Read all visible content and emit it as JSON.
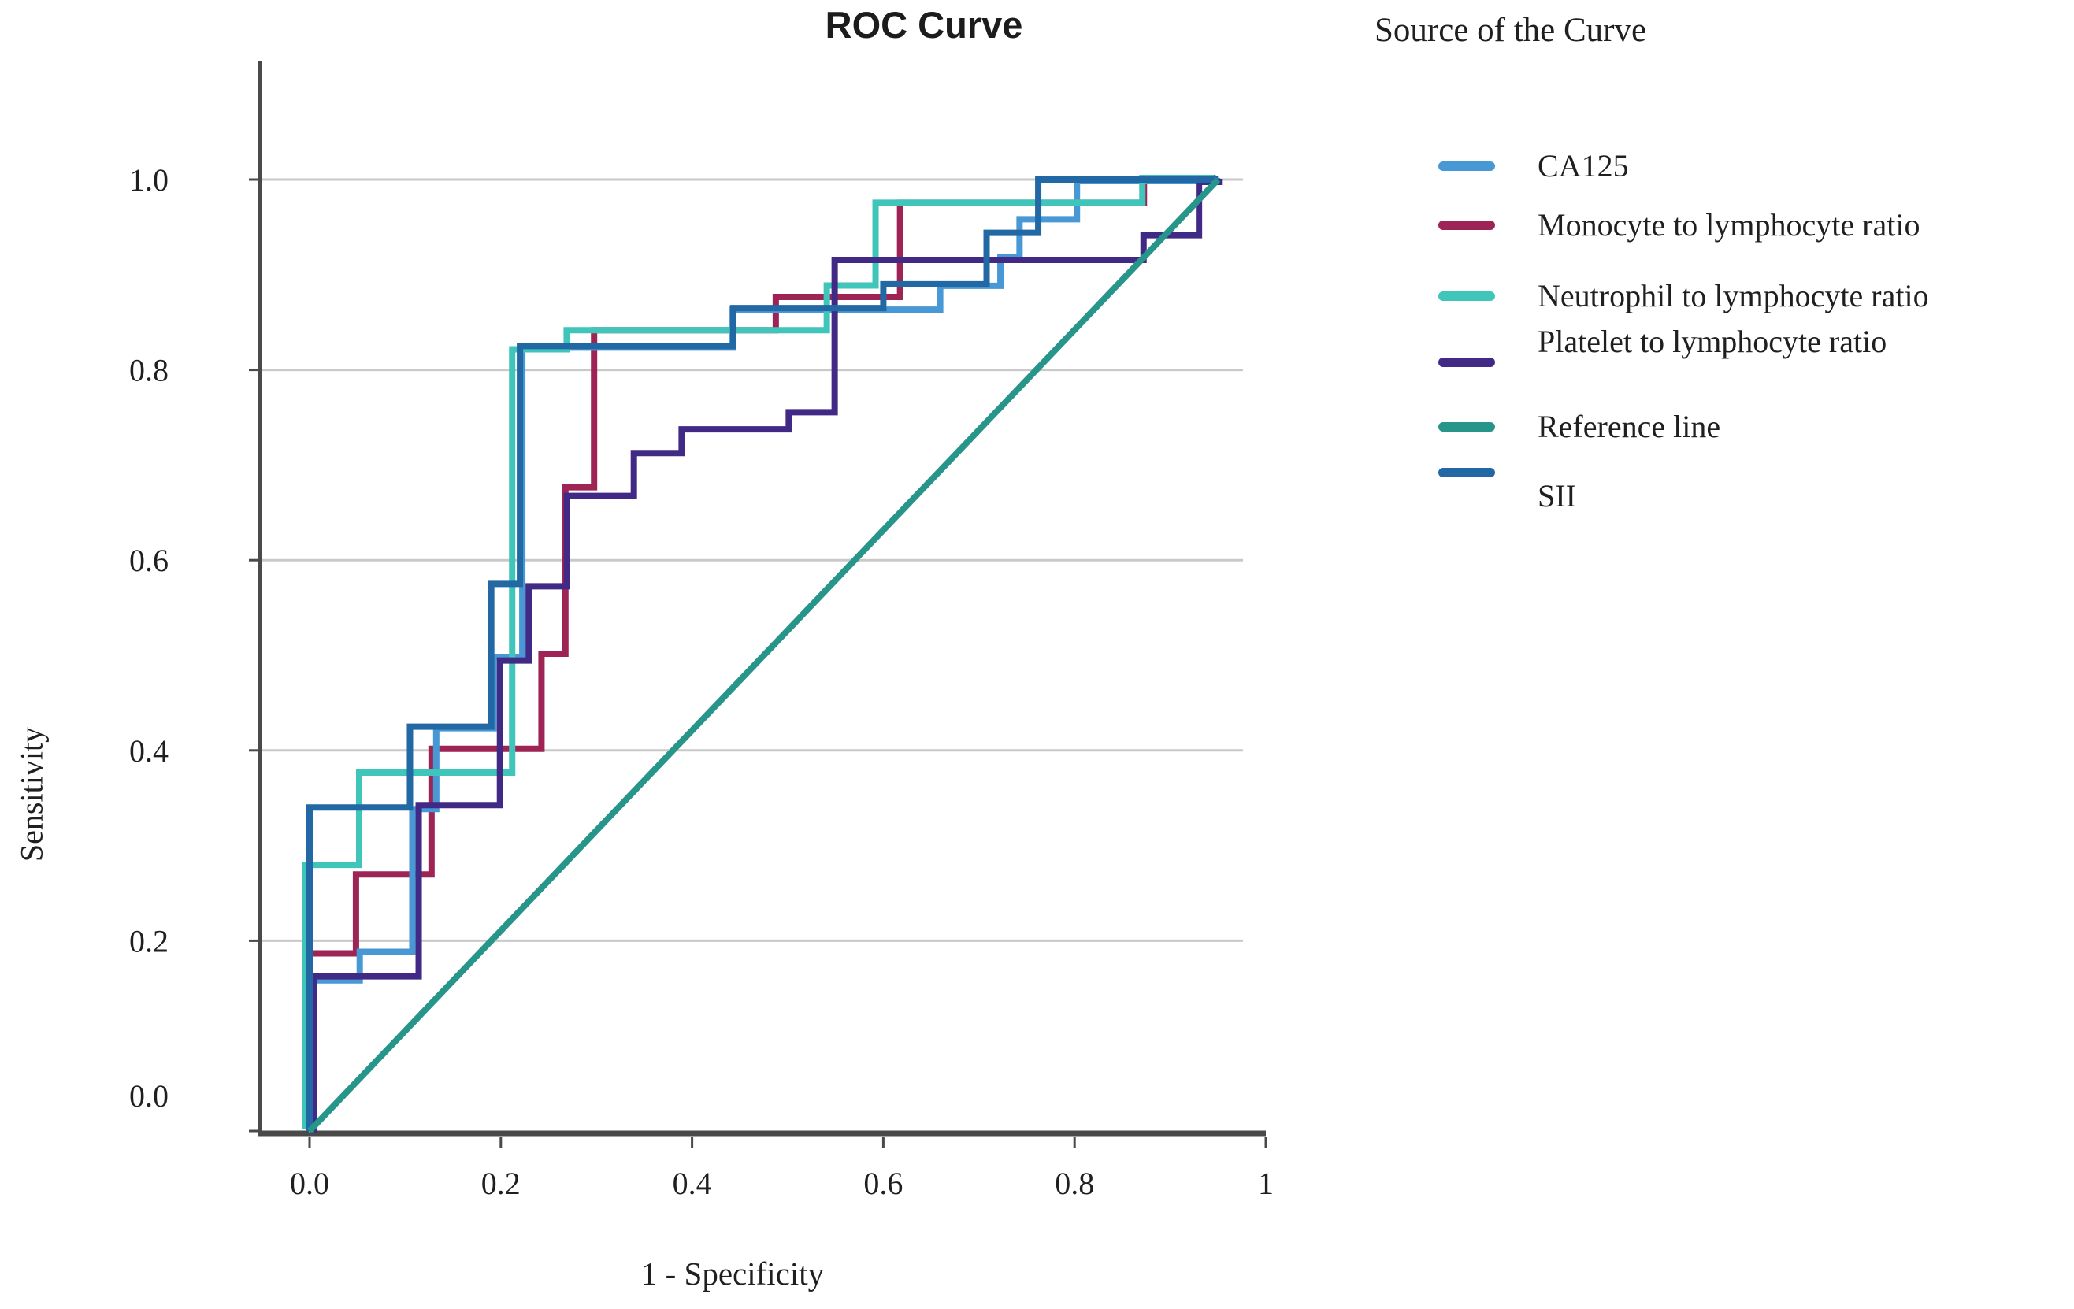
{
  "title": "ROC Curve",
  "axes": {
    "x_label": "1 - Specificity",
    "y_label": "Sensitivity",
    "x_ticks": [
      {
        "label": "0.0",
        "value": 0
      },
      {
        "label": "0.2",
        "value": 0.2
      },
      {
        "label": "0.4",
        "value": 0.4
      },
      {
        "label": "0.6",
        "value": 0.6
      },
      {
        "label": "0.8",
        "value": 0.8
      },
      {
        "label": "1",
        "value": 1
      }
    ],
    "y_ticks": [
      {
        "label": "0.0",
        "value": 0
      },
      {
        "label": "0.2",
        "value": 0.2
      },
      {
        "label": "0.4",
        "value": 0.4
      },
      {
        "label": "0.6",
        "value": 0.6
      },
      {
        "label": "0.8",
        "value": 0.8
      },
      {
        "label": "1.0",
        "value": 1
      }
    ],
    "x_range": [
      0,
      1
    ],
    "y_range": [
      0,
      1
    ]
  },
  "legend": {
    "title": "Source of the Curve",
    "items": [
      {
        "label": "CA125",
        "color": "#4898d5"
      },
      {
        "label": "Monocyte to lymphocyte ratio",
        "color": "#9e2456"
      },
      {
        "label": "Neutrophil to lymphocyte ratio",
        "color": "#3fc5ba"
      },
      {
        "label": "Platelet to lymphocyte ratio",
        "color": "#402a85"
      },
      {
        "label": "Reference line",
        "color": "#27958a"
      },
      {
        "label": "SII",
        "color": "#2268a4"
      }
    ]
  },
  "chart_data": {
    "type": "line",
    "subtype": "roc-step-curves",
    "title": "ROC Curve",
    "xlabel": "1 - Specificity",
    "ylabel": "Sensitivity",
    "xlim": [
      0,
      1
    ],
    "ylim": [
      0,
      1
    ],
    "grid": "horizontal",
    "y_gridlines": [
      0.2,
      0.4,
      0.6,
      0.8,
      1.0
    ],
    "legend_position": "right",
    "series": [
      {
        "name": "CA125",
        "color": "#4898d5",
        "points": [
          [
            0,
            0
          ],
          [
            0,
            0.16
          ],
          [
            0.05,
            0.16
          ],
          [
            0.05,
            0.19
          ],
          [
            0.105,
            0.19
          ],
          [
            0.105,
            0.34
          ],
          [
            0.13,
            0.34
          ],
          [
            0.13,
            0.425
          ],
          [
            0.19,
            0.425
          ],
          [
            0.19,
            0.5
          ],
          [
            0.22,
            0.5
          ],
          [
            0.22,
            0.825
          ],
          [
            0.44,
            0.825
          ],
          [
            0.44,
            0.865
          ],
          [
            0.657,
            0.865
          ],
          [
            0.657,
            0.89
          ],
          [
            0.72,
            0.89
          ],
          [
            0.72,
            0.92
          ],
          [
            0.74,
            0.92
          ],
          [
            0.74,
            0.96
          ],
          [
            0.8,
            0.96
          ],
          [
            0.8,
            1.0
          ],
          [
            0.95,
            1.0
          ]
        ]
      },
      {
        "name": "Monocyte to lymphocyte ratio",
        "color": "#9e2456",
        "points": [
          [
            0,
            0
          ],
          [
            0,
            0.185
          ],
          [
            0.051,
            0.185
          ],
          [
            0.051,
            0.268
          ],
          [
            0.13,
            0.268
          ],
          [
            0.13,
            0.4
          ],
          [
            0.245,
            0.4
          ],
          [
            0.245,
            0.5
          ],
          [
            0.27,
            0.5
          ],
          [
            0.27,
            0.675
          ],
          [
            0.3,
            0.675
          ],
          [
            0.3,
            0.84
          ],
          [
            0.49,
            0.84
          ],
          [
            0.49,
            0.875
          ],
          [
            0.62,
            0.875
          ],
          [
            0.62,
            0.974
          ],
          [
            0.875,
            0.974
          ],
          [
            0.875,
            1.0
          ],
          [
            0.95,
            1.0
          ]
        ]
      },
      {
        "name": "Neutrophil to lymphocyte ratio",
        "color": "#3fc5ba",
        "points": [
          [
            0,
            0
          ],
          [
            0,
            0.278
          ],
          [
            0.056,
            0.278
          ],
          [
            0.056,
            0.375
          ],
          [
            0.216,
            0.375
          ],
          [
            0.216,
            0.82
          ],
          [
            0.273,
            0.82
          ],
          [
            0.273,
            0.84
          ],
          [
            0.545,
            0.84
          ],
          [
            0.545,
            0.887
          ],
          [
            0.596,
            0.887
          ],
          [
            0.596,
            0.974
          ],
          [
            0.875,
            0.974
          ],
          [
            0.875,
            1.0
          ],
          [
            0.95,
            1.0
          ]
        ]
      },
      {
        "name": "Platelet to lymphocyte ratio",
        "color": "#402a85",
        "points": [
          [
            0,
            0
          ],
          [
            0,
            0.165
          ],
          [
            0.11,
            0.165
          ],
          [
            0.11,
            0.345
          ],
          [
            0.195,
            0.345
          ],
          [
            0.195,
            0.497
          ],
          [
            0.225,
            0.497
          ],
          [
            0.225,
            0.575
          ],
          [
            0.265,
            0.575
          ],
          [
            0.265,
            0.67
          ],
          [
            0.335,
            0.67
          ],
          [
            0.335,
            0.715
          ],
          [
            0.385,
            0.715
          ],
          [
            0.385,
            0.74
          ],
          [
            0.497,
            0.74
          ],
          [
            0.497,
            0.758
          ],
          [
            0.545,
            0.758
          ],
          [
            0.545,
            0.918
          ],
          [
            0.868,
            0.918
          ],
          [
            0.868,
            0.944
          ],
          [
            0.926,
            0.944
          ],
          [
            0.926,
            1.0
          ],
          [
            0.95,
            1.0
          ]
        ]
      },
      {
        "name": "SII",
        "color": "#2268a4",
        "points": [
          [
            0,
            0
          ],
          [
            0,
            0.34
          ],
          [
            0.105,
            0.34
          ],
          [
            0.105,
            0.425
          ],
          [
            0.19,
            0.425
          ],
          [
            0.19,
            0.575
          ],
          [
            0.22,
            0.575
          ],
          [
            0.22,
            0.825
          ],
          [
            0.443,
            0.825
          ],
          [
            0.443,
            0.865
          ],
          [
            0.6,
            0.865
          ],
          [
            0.6,
            0.89
          ],
          [
            0.708,
            0.89
          ],
          [
            0.708,
            0.944
          ],
          [
            0.762,
            0.944
          ],
          [
            0.762,
            1.0
          ],
          [
            0.95,
            1.0
          ]
        ]
      },
      {
        "name": "Reference line",
        "color": "#27958a",
        "points": [
          [
            0,
            0
          ],
          [
            0.95,
            1.0
          ]
        ]
      }
    ]
  },
  "colors": {
    "gridline": "#c9c9c9",
    "axis": "#4a4a4a",
    "text": "#1f1f1f",
    "background": "#ffffff"
  }
}
